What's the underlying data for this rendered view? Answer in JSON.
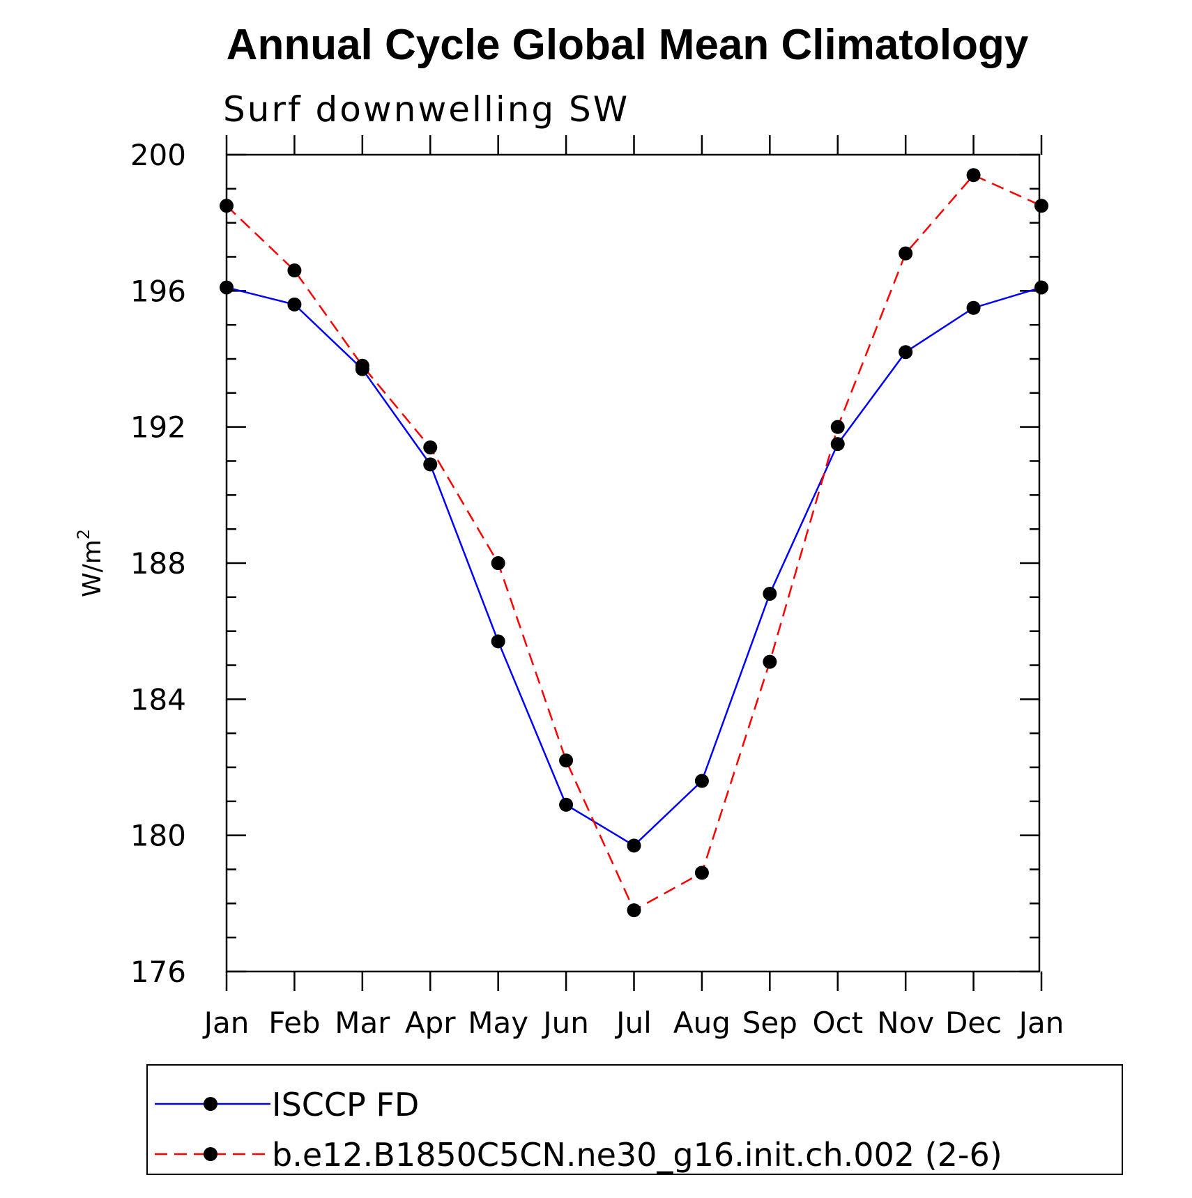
{
  "chart_data": {
    "type": "line",
    "title": "Annual Cycle Global Mean Climatology",
    "subtitle": "Surf downwelling SW",
    "ylabel": "W/m",
    "ylabel_sup": "2",
    "xlabel": "",
    "categories": [
      "Jan",
      "Feb",
      "Mar",
      "Apr",
      "May",
      "Jun",
      "Jul",
      "Aug",
      "Sep",
      "Oct",
      "Nov",
      "Dec",
      "Jan"
    ],
    "ylim": [
      176,
      200
    ],
    "yticks": [
      176,
      180,
      184,
      188,
      192,
      196,
      200
    ],
    "series": [
      {
        "name": "ISCCP FD",
        "color": "#0000ff",
        "line_style": "solid",
        "marker": "filled-circle",
        "values": [
          196.1,
          195.6,
          193.7,
          190.9,
          185.7,
          180.9,
          179.7,
          181.6,
          187.1,
          191.5,
          194.2,
          195.5,
          196.1
        ]
      },
      {
        "name": "b.e12.B1850C5CN.ne30_g16.init.ch.002 (2-6)",
        "color": "#ff0000",
        "line_style": "dashed",
        "marker": "filled-circle",
        "values": [
          198.5,
          196.6,
          193.8,
          191.4,
          188.0,
          182.2,
          177.8,
          178.9,
          185.1,
          192.0,
          197.1,
          199.4,
          198.5
        ]
      }
    ],
    "grid": false,
    "legend_position": "bottom"
  }
}
